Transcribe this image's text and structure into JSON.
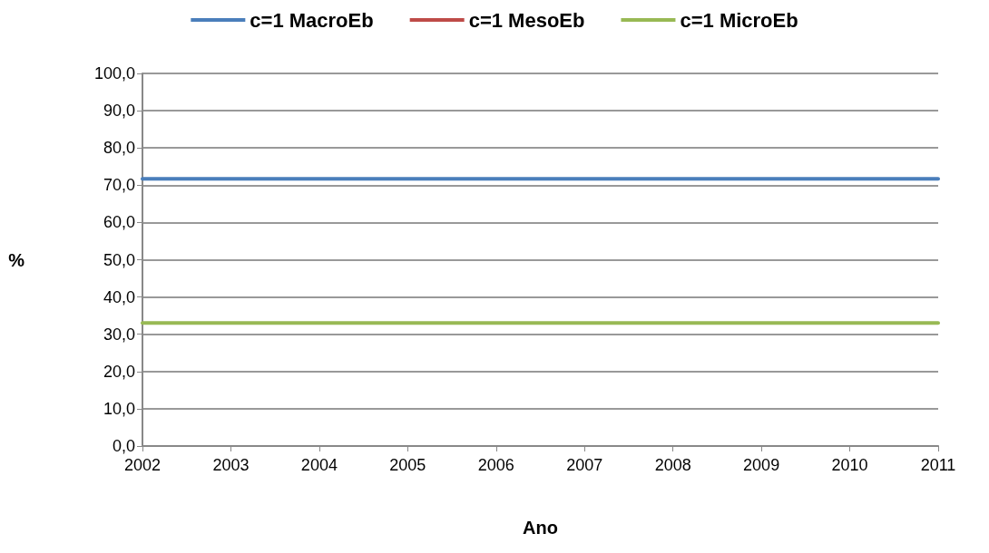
{
  "chart_data": {
    "type": "line",
    "xlabel": "Ano",
    "ylabel": "%",
    "categories": [
      "2002",
      "2003",
      "2004",
      "2005",
      "2006",
      "2007",
      "2008",
      "2009",
      "2010",
      "2011"
    ],
    "series": [
      {
        "name": "c=1 MacroEb",
        "color": "#4a7ebb",
        "values": [
          71.7,
          71.7,
          71.7,
          71.7,
          71.7,
          71.7,
          71.7,
          71.7,
          71.7,
          71.7
        ]
      },
      {
        "name": "c=1 MesoEb",
        "color": "#be4b48",
        "values": [
          null,
          null,
          null,
          null,
          null,
          null,
          null,
          null,
          null,
          null
        ]
      },
      {
        "name": "c=1 MicroEb",
        "color": "#98b954",
        "values": [
          33.0,
          33.0,
          33.0,
          33.0,
          33.0,
          33.0,
          33.0,
          33.0,
          33.0,
          33.0
        ]
      }
    ],
    "ylim": [
      0,
      100
    ],
    "yticks": [
      {
        "value": 0,
        "label": "0,0"
      },
      {
        "value": 10,
        "label": "10,0"
      },
      {
        "value": 20,
        "label": "20,0"
      },
      {
        "value": 30,
        "label": "30,0"
      },
      {
        "value": 40,
        "label": "40,0"
      },
      {
        "value": 50,
        "label": "50,0"
      },
      {
        "value": 60,
        "label": "60,0"
      },
      {
        "value": 70,
        "label": "70,0"
      },
      {
        "value": 80,
        "label": "80,0"
      },
      {
        "value": 90,
        "label": "90,0"
      },
      {
        "value": 100,
        "label": "100,0"
      }
    ],
    "grid": "y",
    "legend": "top",
    "marker": "none",
    "line_style": "solid"
  }
}
